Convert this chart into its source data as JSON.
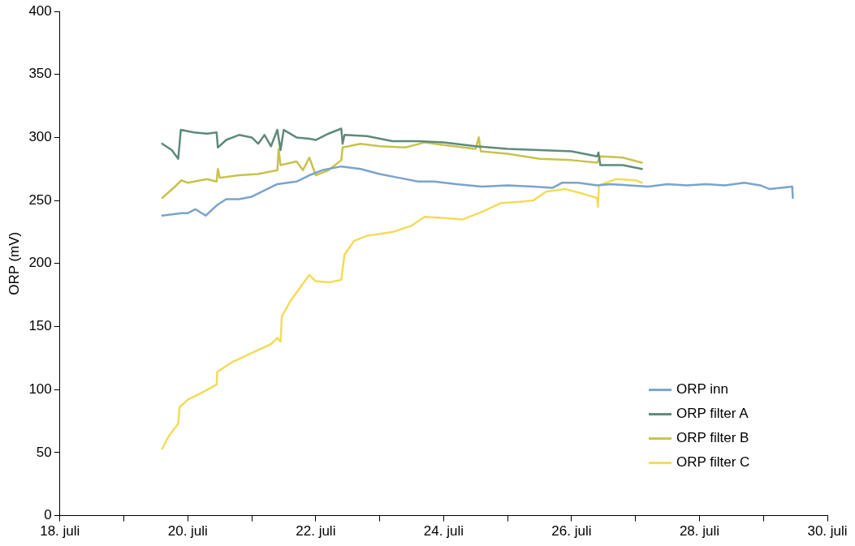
{
  "chart_data": {
    "type": "line",
    "ylabel": "ORP (mV)",
    "xlim": [
      "--07-18",
      "--07-30"
    ],
    "ylim": [
      0,
      400
    ],
    "yticks": [
      0,
      50,
      100,
      150,
      200,
      250,
      300,
      350,
      400
    ],
    "xticks": [
      {
        "value": "--07-18",
        "label": "18. juli"
      },
      {
        "value": "--07-19",
        "label": null
      },
      {
        "value": "--07-20",
        "label": "20. juli"
      },
      {
        "value": "--07-21",
        "label": null
      },
      {
        "value": "--07-22",
        "label": "22. juli"
      },
      {
        "value": "--07-23",
        "label": null
      },
      {
        "value": "--07-24",
        "label": "24. juli"
      },
      {
        "value": "--07-25",
        "label": null
      },
      {
        "value": "--07-26",
        "label": "26. juli"
      },
      {
        "value": "--07-27",
        "label": null
      },
      {
        "value": "--07-28",
        "label": "28. juli"
      },
      {
        "value": "--07-29",
        "label": null
      },
      {
        "value": "--07-30",
        "label": "30. juli"
      }
    ],
    "legend": "bottom right",
    "marker": "none",
    "series": [
      {
        "name": "ORP inn",
        "color": "#7ba3cc",
        "x": [
          "--07-19T14:24",
          "--07-19T21:36",
          "--07-20T00:00",
          "--07-20T02:53",
          "--07-20T06:43",
          "--07-20T10:48",
          "--07-20T14:24",
          "--07-20T19:12",
          "--07-21T00:00",
          "--07-21T04:48",
          "--07-21T09:36",
          "--07-21T16:48",
          "--07-21T21:36",
          "--07-22T02:24",
          "--07-22T09:36",
          "--07-22T16:48",
          "--07-23T00:00",
          "--07-23T07:12",
          "--07-23T14:24",
          "--07-23T20:24",
          "--07-24T04:48",
          "--07-24T14:24",
          "--07-25T00:00",
          "--07-25T09:36",
          "--07-25T16:48",
          "--07-25T20:24",
          "--07-26T02:24",
          "--07-26T09:36",
          "--07-26T14:24",
          "--07-26T21:36",
          "--07-27T04:48",
          "--07-27T12:00",
          "--07-27T19:12",
          "--07-28T02:24",
          "--07-28T09:36",
          "--07-28T16:48",
          "--07-28T22:48",
          "--07-29T02:24",
          "--07-29T10:48",
          "--07-29T11:02"
        ],
        "values": [
          238,
          240,
          240,
          243,
          238,
          246,
          251,
          251,
          253,
          258,
          263,
          265,
          270,
          274,
          277,
          275,
          271,
          268,
          265,
          265,
          263,
          261,
          262,
          261,
          260,
          264,
          264,
          262,
          263,
          262,
          261,
          263,
          262,
          263,
          262,
          264,
          262,
          259,
          261,
          252
        ]
      },
      {
        "name": "ORP filter A",
        "color": "#5f8a7a",
        "x": [
          "--07-19T14:24",
          "--07-19T18:00",
          "--07-19T20:24",
          "--07-19T21:22",
          "--07-20T02:24",
          "--07-20T07:12",
          "--07-20T10:48",
          "--07-20T11:17",
          "--07-20T14:24",
          "--07-20T19:12",
          "--07-21T00:00",
          "--07-21T02:24",
          "--07-21T04:48",
          "--07-21T07:12",
          "--07-21T09:36",
          "--07-21T10:48",
          "--07-21T12:00",
          "--07-21T16:48",
          "--07-21T21:36",
          "--07-22T00:00",
          "--07-22T04:48",
          "--07-22T09:36",
          "--07-22T10:05",
          "--07-22T10:48",
          "--07-22T19:12",
          "--07-23T04:48",
          "--07-23T14:24",
          "--07-24T00:00",
          "--07-24T12:00",
          "--07-25T00:00",
          "--07-25T12:00",
          "--07-26T00:00",
          "--07-26T09:36",
          "--07-26T10:05",
          "--07-26T10:48",
          "--07-26T19:12",
          "--07-27T02:24"
        ],
        "values": [
          295,
          290,
          283,
          306,
          304,
          303,
          304,
          292,
          298,
          302,
          300,
          295,
          302,
          293,
          306,
          290,
          306,
          300,
          299,
          298,
          303,
          307,
          295,
          302,
          301,
          297,
          297,
          296,
          293,
          291,
          290,
          289,
          285,
          288,
          278,
          278,
          275
        ]
      },
      {
        "name": "ORP filter B",
        "color": "#c8c34a",
        "x": [
          "--07-19T14:24",
          "--07-19T19:12",
          "--07-19T21:36",
          "--07-20T00:00",
          "--07-20T07:12",
          "--07-20T10:48",
          "--07-20T11:17",
          "--07-20T12:00",
          "--07-20T19:12",
          "--07-21T02:24",
          "--07-21T09:36",
          "--07-21T10:05",
          "--07-21T10:48",
          "--07-21T16:48",
          "--07-21T19:12",
          "--07-21T21:36",
          "--07-22T00:00",
          "--07-22T04:48",
          "--07-22T09:36",
          "--07-22T10:05",
          "--07-22T16:48",
          "--07-23T00:00",
          "--07-23T09:36",
          "--07-23T16:48",
          "--07-24T00:00",
          "--07-24T12:00",
          "--07-24T13:12",
          "--07-24T13:55",
          "--07-25T00:00",
          "--07-25T12:00",
          "--07-26T00:00",
          "--07-26T09:36",
          "--07-26T10:48",
          "--07-26T19:12",
          "--07-27T02:24"
        ],
        "values": [
          252,
          261,
          266,
          264,
          267,
          265,
          275,
          268,
          270,
          271,
          274,
          291,
          278,
          281,
          274,
          284,
          270,
          274,
          282,
          292,
          295,
          293,
          292,
          296,
          294,
          291,
          300,
          289,
          287,
          283,
          282,
          280,
          285,
          284,
          280
        ]
      },
      {
        "name": "ORP filter C",
        "color": "#f2dc5a",
        "x": [
          "--07-19T14:24",
          "--07-19T16:48",
          "--07-19T20:24",
          "--07-19T20:53",
          "--07-20T00:00",
          "--07-20T04:48",
          "--07-20T10:48",
          "--07-20T11:02",
          "--07-20T16:48",
          "--07-21T00:00",
          "--07-21T07:12",
          "--07-21T09:36",
          "--07-21T10:48",
          "--07-21T11:17",
          "--07-21T14:24",
          "--07-21T19:12",
          "--07-21T21:36",
          "--07-22T00:00",
          "--07-22T04:48",
          "--07-22T09:36",
          "--07-22T10:48",
          "--07-22T14:24",
          "--07-22T19:12",
          "--07-23T04:48",
          "--07-23T12:00",
          "--07-23T16:48",
          "--07-24T00:00",
          "--07-24T07:12",
          "--07-24T14:24",
          "--07-24T21:36",
          "--07-25T04:48",
          "--07-25T09:36",
          "--07-25T14:24",
          "--07-25T21:36",
          "--07-26T04:48",
          "--07-26T09:36",
          "--07-26T09:50",
          "--07-26T10:19",
          "--07-26T16:48",
          "--07-27T00:00",
          "--07-27T02:24"
        ],
        "values": [
          53,
          63,
          73,
          86,
          92,
          97,
          104,
          114,
          122,
          129,
          136,
          141,
          138,
          158,
          170,
          184,
          191,
          186,
          185,
          187,
          207,
          218,
          222,
          225,
          230,
          237,
          236,
          235,
          241,
          248,
          249,
          250,
          257,
          259,
          255,
          252,
          245,
          262,
          267,
          266,
          264
        ]
      }
    ]
  }
}
